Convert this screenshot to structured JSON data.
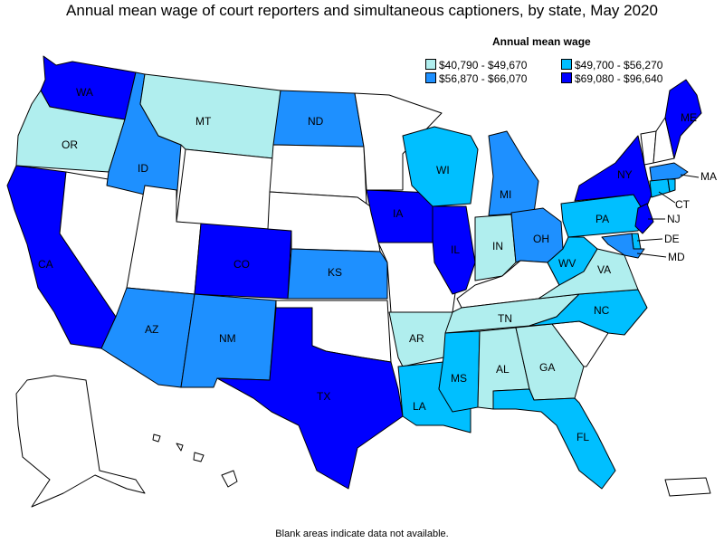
{
  "title": "Annual mean wage of court reporters and simultaneous captioners, by state, May 2020",
  "legend": {
    "title": "Annual mean wage",
    "items": [
      {
        "label": "$40,790 - $49,670",
        "color": "#b0eeee"
      },
      {
        "label": "$49,700 - $56,270",
        "color": "#00bfff"
      },
      {
        "label": "$56,870 - $66,070",
        "color": "#1e90ff"
      },
      {
        "label": "$69,080 - $96,640",
        "color": "#0000ff"
      }
    ]
  },
  "footnote": "Blank areas indicate data not available.",
  "states": {
    "WA": {
      "label": "WA",
      "fill": "#0000ff"
    },
    "OR": {
      "label": "OR",
      "fill": "#b0eeee"
    },
    "CA": {
      "label": "CA",
      "fill": "#0000ff"
    },
    "NV": {
      "label": "",
      "fill": "#ffffff"
    },
    "ID": {
      "label": "ID",
      "fill": "#1e90ff"
    },
    "MT": {
      "label": "MT",
      "fill": "#b0eeee"
    },
    "WY": {
      "label": "",
      "fill": "#ffffff"
    },
    "UT": {
      "label": "",
      "fill": "#ffffff"
    },
    "AZ": {
      "label": "AZ",
      "fill": "#1e90ff"
    },
    "CO": {
      "label": "CO",
      "fill": "#0000ff"
    },
    "NM": {
      "label": "NM",
      "fill": "#1e90ff"
    },
    "ND": {
      "label": "ND",
      "fill": "#1e90ff"
    },
    "SD": {
      "label": "",
      "fill": "#ffffff"
    },
    "NE": {
      "label": "",
      "fill": "#ffffff"
    },
    "KS": {
      "label": "KS",
      "fill": "#1e90ff"
    },
    "OK": {
      "label": "",
      "fill": "#ffffff"
    },
    "TX": {
      "label": "TX",
      "fill": "#0000ff"
    },
    "MN": {
      "label": "",
      "fill": "#ffffff"
    },
    "IA": {
      "label": "IA",
      "fill": "#0000ff"
    },
    "MO": {
      "label": "",
      "fill": "#ffffff"
    },
    "AR": {
      "label": "AR",
      "fill": "#b0eeee"
    },
    "LA": {
      "label": "LA",
      "fill": "#00bfff"
    },
    "WI": {
      "label": "WI",
      "fill": "#00bfff"
    },
    "IL": {
      "label": "IL",
      "fill": "#0000ff"
    },
    "MI": {
      "label": "MI",
      "fill": "#1e90ff"
    },
    "IN": {
      "label": "IN",
      "fill": "#b0eeee"
    },
    "OH": {
      "label": "OH",
      "fill": "#1e90ff"
    },
    "KY": {
      "label": "",
      "fill": "#ffffff"
    },
    "TN": {
      "label": "TN",
      "fill": "#b0eeee"
    },
    "MS": {
      "label": "MS",
      "fill": "#00bfff"
    },
    "AL": {
      "label": "AL",
      "fill": "#b0eeee"
    },
    "GA": {
      "label": "GA",
      "fill": "#b0eeee"
    },
    "FL": {
      "label": "FL",
      "fill": "#00bfff"
    },
    "SC": {
      "label": "",
      "fill": "#ffffff"
    },
    "NC": {
      "label": "NC",
      "fill": "#00bfff"
    },
    "VA": {
      "label": "VA",
      "fill": "#b0eeee"
    },
    "WV": {
      "label": "WV",
      "fill": "#00bfff"
    },
    "PA": {
      "label": "PA",
      "fill": "#00bfff"
    },
    "NY": {
      "label": "NY",
      "fill": "#0000ff"
    },
    "VT": {
      "label": "",
      "fill": "#ffffff"
    },
    "NH": {
      "label": "",
      "fill": "#ffffff"
    },
    "ME": {
      "label": "ME",
      "fill": "#0000ff"
    },
    "MA": {
      "label": "MA",
      "fill": "#1e90ff"
    },
    "CT": {
      "label": "CT",
      "fill": "#00bfff"
    },
    "RI": {
      "label": "",
      "fill": "#00bfff"
    },
    "NJ": {
      "label": "NJ",
      "fill": "#0000ff"
    },
    "DE": {
      "label": "DE",
      "fill": "#00bfff"
    },
    "MD": {
      "label": "MD",
      "fill": "#1e90ff"
    },
    "AK": {
      "label": "",
      "fill": "#ffffff"
    },
    "HI": {
      "label": "",
      "fill": "#ffffff"
    },
    "PR": {
      "label": "",
      "fill": "#ffffff"
    }
  }
}
